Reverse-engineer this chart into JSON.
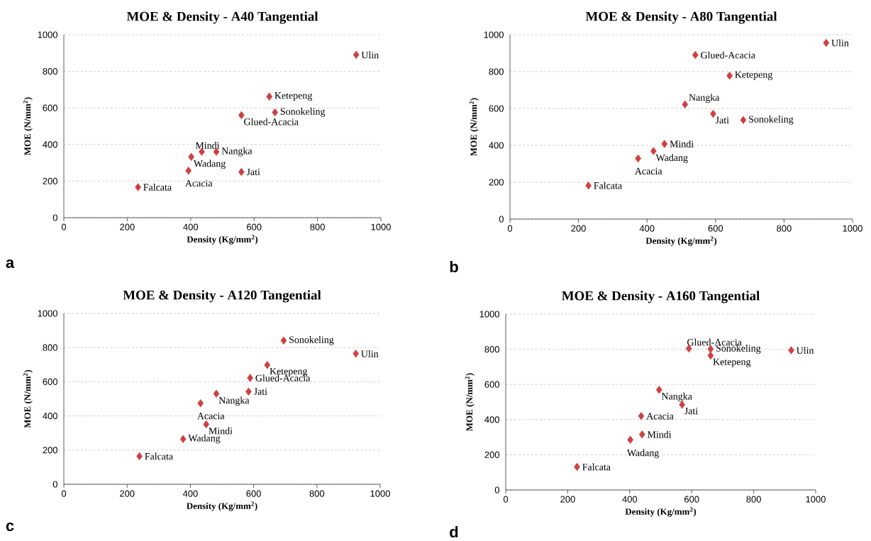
{
  "chart_data": [
    {
      "type": "scatter",
      "title": "MOE & Density - A40 Tangential",
      "xlabel": "Density (Kg/mm$^{2}$)",
      "ylabel": "MOE (N/mm$^{2}$)",
      "color": "#d13f3f",
      "marker": "diamond",
      "grid": "y",
      "x": [
        922,
        648,
        666,
        560,
        435,
        481,
        402,
        393,
        560,
        234
      ],
      "values": [
        890,
        662,
        576,
        560,
        360,
        360,
        332,
        257,
        250,
        167
      ],
      "xlim": [
        0,
        1000
      ],
      "ylim": [
        0,
        1000
      ],
      "xticks": [
        0,
        200,
        400,
        600,
        800,
        1000
      ],
      "yticks": [
        0,
        200,
        400,
        600,
        800,
        1000
      ],
      "annotations": [
        {
          "text": "Ulin",
          "x": 922,
          "y": 890
        },
        {
          "text": "Ketepeng",
          "x": 648,
          "y": 662
        },
        {
          "text": "Sonokeling",
          "x": 666,
          "y": 576
        },
        {
          "text": "Glued-Acacia",
          "x": 560,
          "y": 560
        },
        {
          "text": "Mindi",
          "x": 435,
          "y": 360
        },
        {
          "text": "Nangka",
          "x": 481,
          "y": 360
        },
        {
          "text": "Wadang",
          "x": 402,
          "y": 332
        },
        {
          "text": "Acacia",
          "x": 393,
          "y": 257
        },
        {
          "text": "Jati",
          "x": 560,
          "y": 250
        },
        {
          "text": "Falcata",
          "x": 234,
          "y": 167
        },
        "a"
      ]
    },
    {
      "type": "scatter",
      "title": "MOE & Density - A80 Tangential",
      "xlabel": "Density (Kg/mm$^{2}$)",
      "ylabel": "MOE (N/mm$^{2}$)",
      "color": "#d13f3f",
      "marker": "diamond",
      "grid": "y",
      "x": [
        923,
        541,
        641,
        511,
        593,
        681,
        451,
        419,
        374,
        229
      ],
      "values": [
        956,
        890,
        778,
        622,
        571,
        537,
        408,
        369,
        329,
        182
      ],
      "xlim": [
        0,
        1000
      ],
      "ylim": [
        0,
        1000
      ],
      "xticks": [
        0,
        200,
        400,
        600,
        800,
        1000
      ],
      "yticks": [
        0,
        200,
        400,
        600,
        800,
        1000
      ],
      "annotations": [
        {
          "text": "Ulin",
          "x": 923,
          "y": 956
        },
        {
          "text": "Glued-Acacia",
          "x": 541,
          "y": 890
        },
        {
          "text": "Ketepeng",
          "x": 641,
          "y": 778
        },
        {
          "text": "Nangka",
          "x": 511,
          "y": 622
        },
        {
          "text": "Jati",
          "x": 593,
          "y": 571
        },
        {
          "text": "Sonokeling",
          "x": 681,
          "y": 537
        },
        {
          "text": "Mindi",
          "x": 451,
          "y": 408
        },
        {
          "text": "Wadang",
          "x": 419,
          "y": 369
        },
        {
          "text": "Acacia",
          "x": 374,
          "y": 329
        },
        {
          "text": "Falcata",
          "x": 229,
          "y": 182
        },
        "b"
      ]
    },
    {
      "type": "scatter",
      "title": "MOE & Density - A120 Tangential",
      "xlabel": "Density (Kg/mm$^{2}$)",
      "ylabel": "MOE (N/mm$^{2}$)",
      "color": "#d13f3f",
      "marker": "diamond",
      "grid": "y",
      "x": [
        695,
        923,
        643,
        589,
        584,
        482,
        432,
        450,
        377,
        239
      ],
      "values": [
        841,
        764,
        698,
        622,
        543,
        530,
        474,
        351,
        265,
        164
      ],
      "xlim": [
        0,
        1000
      ],
      "ylim": [
        0,
        1000
      ],
      "xticks": [
        0,
        200,
        400,
        600,
        800,
        1000
      ],
      "yticks": [
        0,
        200,
        400,
        600,
        800,
        1000
      ],
      "annotations": [
        {
          "text": "Sonokeling",
          "x": 695,
          "y": 841
        },
        {
          "text": "Ulin",
          "x": 923,
          "y": 764
        },
        {
          "text": "Ketepeng",
          "x": 643,
          "y": 698
        },
        {
          "text": "Glued-Acacia",
          "x": 589,
          "y": 622
        },
        {
          "text": "Jati",
          "x": 584,
          "y": 543
        },
        {
          "text": "Nangka",
          "x": 482,
          "y": 530
        },
        {
          "text": "Acacia",
          "x": 432,
          "y": 474
        },
        {
          "text": "Mindi",
          "x": 450,
          "y": 351
        },
        {
          "text": "Wadang",
          "x": 377,
          "y": 265
        },
        {
          "text": "Falcata",
          "x": 239,
          "y": 164
        },
        "c"
      ]
    },
    {
      "type": "scatter",
      "title": "MOE & Density - A160 Tangential",
      "xlabel": "Density (Kg/mm$^{2}$)",
      "ylabel": "MOE (N/mm$^{2}$)",
      "color": "#d13f3f",
      "marker": "diamond",
      "grid": "y",
      "x": [
        591,
        661,
        661,
        921,
        495,
        569,
        437,
        440,
        402,
        230
      ],
      "values": [
        804,
        801,
        764,
        794,
        570,
        485,
        420,
        316,
        285,
        131
      ],
      "xlim": [
        0,
        1000
      ],
      "ylim": [
        0,
        1000
      ],
      "xticks": [
        0,
        200,
        400,
        600,
        800,
        1000
      ],
      "yticks": [
        0,
        200,
        400,
        600,
        800,
        1000
      ],
      "annotations": [
        {
          "text": "Glued-Acacia",
          "x": 591,
          "y": 804
        },
        {
          "text": "Sonokeling",
          "x": 661,
          "y": 801
        },
        {
          "text": "Ketepeng",
          "x": 661,
          "y": 764
        },
        {
          "text": "Ulin",
          "x": 921,
          "y": 794
        },
        {
          "text": "Nangka",
          "x": 495,
          "y": 570
        },
        {
          "text": "Jati",
          "x": 569,
          "y": 485
        },
        {
          "text": "Acacia",
          "x": 437,
          "y": 420
        },
        {
          "text": "Mindi",
          "x": 440,
          "y": 316
        },
        {
          "text": "Wadang",
          "x": 402,
          "y": 285
        },
        {
          "text": "Falcata",
          "x": 230,
          "y": 131
        },
        "d"
      ]
    }
  ]
}
